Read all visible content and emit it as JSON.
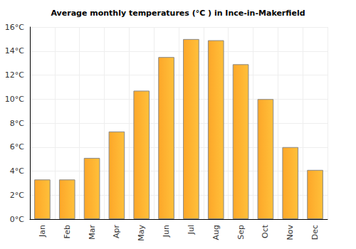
{
  "chart_data": {
    "type": "bar",
    "title": "Average monthly temperatures (°C ) in Ince-in-Makerfield",
    "categories": [
      "Jan",
      "Feb",
      "Mar",
      "Apr",
      "May",
      "Jun",
      "Jul",
      "Aug",
      "Sep",
      "Oct",
      "Nov",
      "Dec"
    ],
    "values": [
      3.3,
      3.3,
      5.1,
      7.3,
      10.7,
      13.5,
      15.0,
      14.9,
      12.9,
      10.0,
      6.0,
      4.1
    ],
    "color": "#fda729",
    "ylim": [
      0,
      16
    ],
    "yticks": [
      {
        "value": 0,
        "label": "0°C"
      },
      {
        "value": 2,
        "label": "2°C"
      },
      {
        "value": 4,
        "label": "4°C"
      },
      {
        "value": 6,
        "label": "6°C"
      },
      {
        "value": 8,
        "label": "8°C"
      },
      {
        "value": 10,
        "label": "10°C"
      },
      {
        "value": 12,
        "label": "12°C"
      },
      {
        "value": 14,
        "label": "14°C"
      },
      {
        "value": 16,
        "label": "16°C"
      }
    ],
    "grid": true
  }
}
